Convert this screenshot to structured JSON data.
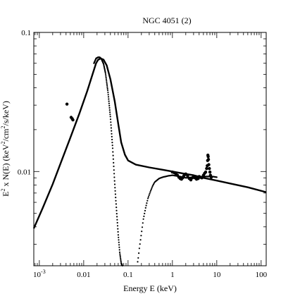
{
  "chart_data": {
    "type": "scatter",
    "title": "NGC 4051 (2)",
    "xlabel": "Energy E (keV)",
    "ylabel_parts": {
      "e": "E",
      "e_sup": "2",
      "mid": " x N(E) (keV",
      "unit_sup": "2",
      "tail": "/cm",
      "tail_sup": "2",
      "end": "/s/keV)"
    },
    "x_scale": "log",
    "y_scale": "log",
    "xlim": [
      0.00075,
      130
    ],
    "ylim": [
      0.0021,
      0.1
    ],
    "x_tick_labels": [
      {
        "value": 0.001,
        "base": "10",
        "exp": "-3"
      },
      {
        "value": 0.01,
        "base": "0.01",
        "exp": ""
      },
      {
        "value": 0.1,
        "base": "0.1",
        "exp": ""
      },
      {
        "value": 1,
        "base": "1",
        "exp": ""
      },
      {
        "value": 10,
        "base": "10",
        "exp": ""
      },
      {
        "value": 100,
        "base": "100",
        "exp": ""
      }
    ],
    "y_tick_labels": [
      {
        "value": 0.01,
        "label": "0.01"
      },
      {
        "value": 0.1,
        "label": "0.1"
      }
    ],
    "grid": false,
    "series": [
      {
        "style": "dense-line",
        "x": [
          0.00075,
          0.0012,
          0.002,
          0.003,
          0.005,
          0.008,
          0.012,
          0.016,
          0.019,
          0.021,
          0.024,
          0.028,
          0.033,
          0.04,
          0.05,
          0.06,
          0.07,
          0.085,
          0.1,
          0.15,
          0.3,
          0.6,
          1,
          2,
          3,
          5,
          10,
          20,
          50,
          130
        ],
        "y": [
          0.0039,
          0.0055,
          0.0081,
          0.0114,
          0.0175,
          0.0262,
          0.0378,
          0.0505,
          0.06,
          0.0635,
          0.065,
          0.0637,
          0.058,
          0.046,
          0.032,
          0.022,
          0.0162,
          0.0132,
          0.012,
          0.0112,
          0.0107,
          0.0103,
          0.01,
          0.0096,
          0.0094,
          0.009,
          0.0086,
          0.0082,
          0.0077,
          0.0071
        ]
      },
      {
        "style": "dotted",
        "x": [
          0.017,
          0.019,
          0.021,
          0.023,
          0.025,
          0.028,
          0.031,
          0.035,
          0.04,
          0.045,
          0.05,
          0.055,
          0.06,
          0.065,
          0.07,
          0.075,
          0.08
        ],
        "y": [
          0.06,
          0.065,
          0.0662,
          0.0662,
          0.0645,
          0.0595,
          0.051,
          0.038,
          0.0245,
          0.0147,
          0.0083,
          0.0052,
          0.0035,
          0.0026,
          0.0022,
          0.0021,
          0.0021
        ]
      },
      {
        "style": "dotted",
        "x": [
          0.16,
          0.17,
          0.18,
          0.2,
          0.22,
          0.25,
          0.28,
          0.32,
          0.36,
          0.4,
          0.5,
          0.6,
          0.8,
          1,
          1.5,
          2,
          3,
          5,
          8,
          10
        ],
        "y": [
          0.0021,
          0.0024,
          0.0028,
          0.0036,
          0.0045,
          0.0055,
          0.0064,
          0.0072,
          0.0079,
          0.0084,
          0.0089,
          0.0091,
          0.0093,
          0.0094,
          0.0092,
          0.009,
          0.0091,
          0.0092,
          0.0092,
          0.0091
        ]
      },
      {
        "style": "markers",
        "x": [
          0.0042,
          0.0052,
          0.0055,
          0.0057,
          1.0,
          1.1,
          1.2,
          1.3,
          1.4,
          1.5,
          1.6,
          1.7,
          1.8,
          1.9,
          2.0,
          2.2,
          2.4,
          2.6,
          2.8,
          3.0,
          3.2,
          3.5,
          3.8,
          4.0,
          4.3,
          4.6,
          5.0,
          5.3,
          5.6,
          5.9,
          6.1,
          6.2,
          6.3,
          6.4,
          6.5,
          6.6,
          6.8,
          7.0,
          7.2,
          7.5
        ],
        "y": [
          0.0305,
          0.0245,
          0.024,
          0.0235,
          0.0099,
          0.0098,
          0.0096,
          0.0094,
          0.0091,
          0.0089,
          0.0088,
          0.009,
          0.0093,
          0.0095,
          0.0096,
          0.0093,
          0.0089,
          0.0087,
          0.009,
          0.0092,
          0.009,
          0.0088,
          0.0089,
          0.0092,
          0.0091,
          0.009,
          0.0094,
          0.0097,
          0.0099,
          0.0105,
          0.011,
          0.012,
          0.0131,
          0.0128,
          0.0122,
          0.0112,
          0.0105,
          0.0099,
          0.0094,
          0.0091
        ]
      }
    ]
  }
}
